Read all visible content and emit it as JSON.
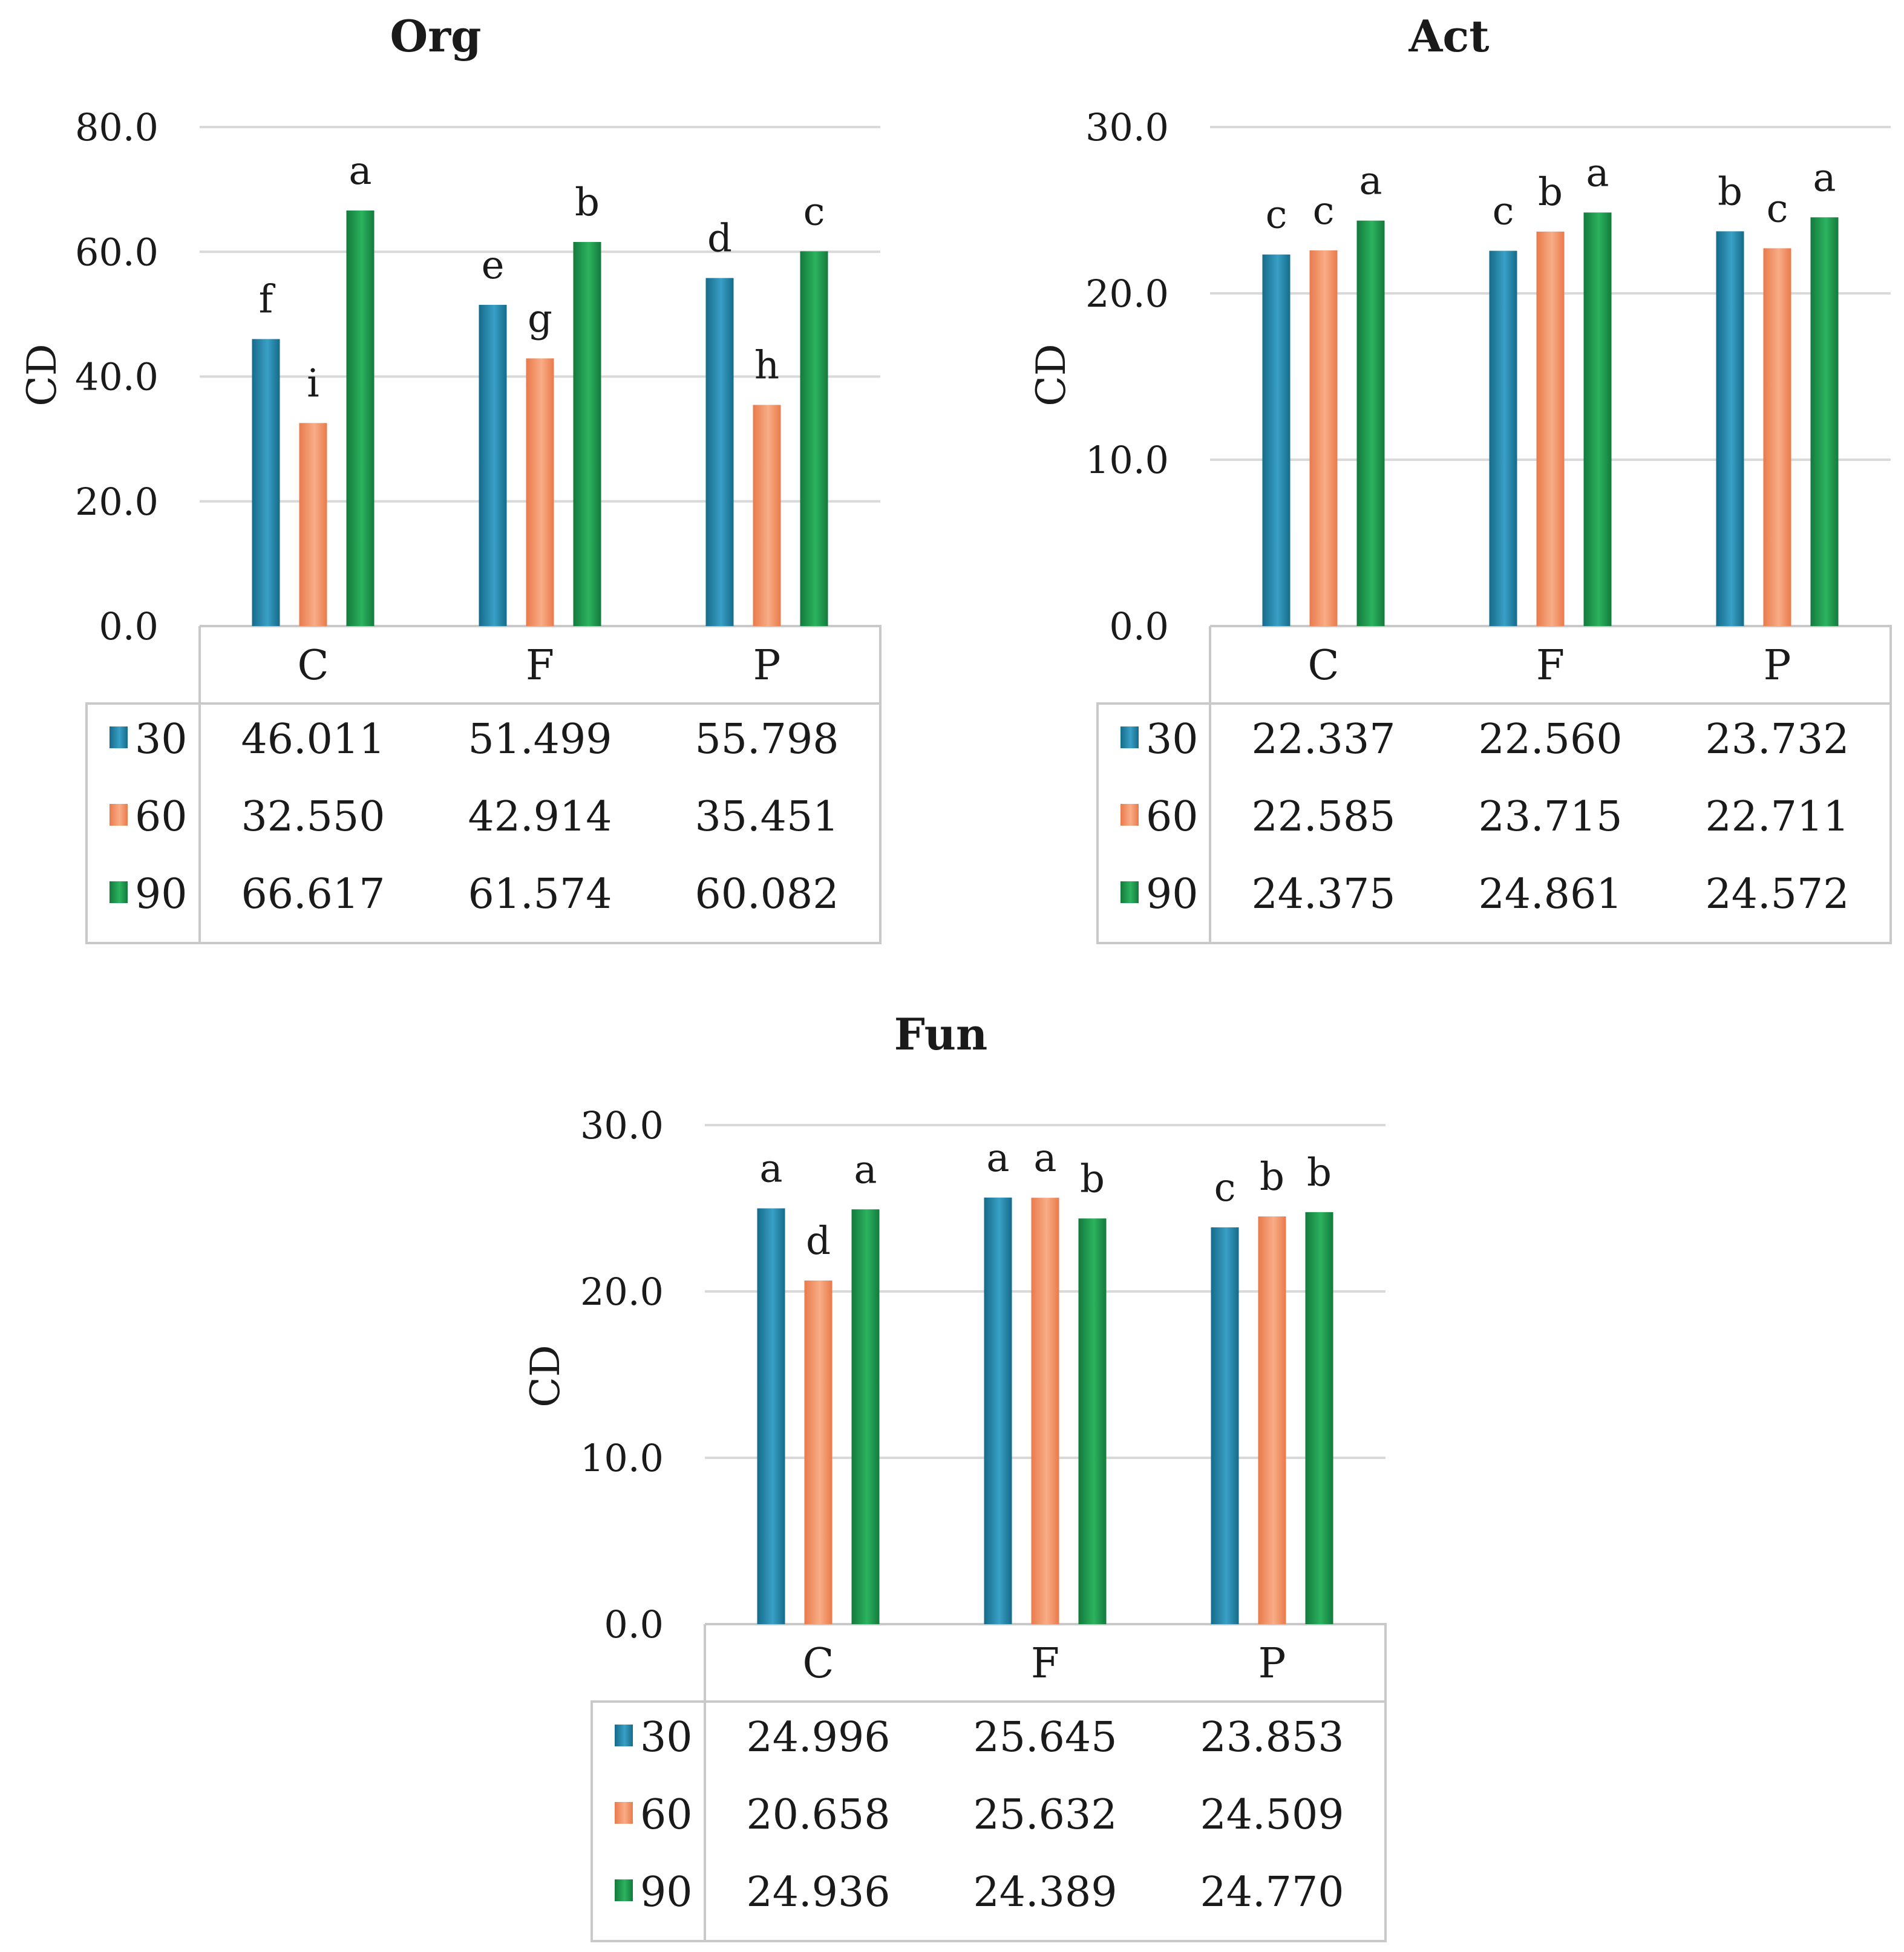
{
  "colors": {
    "s30_dark": "#156b8a",
    "s30_light": "#3aa0c6",
    "s60_dark": "#e97a4c",
    "s60_light": "#f8ad86",
    "s90_dark": "#137a3c",
    "s90_light": "#2cb35f"
  },
  "chart_data": [
    {
      "type": "bar",
      "title": "Org",
      "ylabel": "CD",
      "xlabel": "",
      "ylim": [
        0,
        80
      ],
      "yticks": [
        "0.0",
        "20.0",
        "40.0",
        "60.0",
        "80.0"
      ],
      "categories": [
        "C",
        "F",
        "P"
      ],
      "series": [
        {
          "name": "30",
          "values": [
            46.011,
            51.499,
            55.798
          ],
          "labels": [
            "46.011",
            "51.499",
            "55.798"
          ],
          "letters": [
            "f",
            "e",
            "d"
          ]
        },
        {
          "name": "60",
          "values": [
            32.55,
            42.914,
            35.451
          ],
          "labels": [
            "32.550",
            "42.914",
            "35.451"
          ],
          "letters": [
            "i",
            "g",
            "h"
          ]
        },
        {
          "name": "90",
          "values": [
            66.617,
            61.574,
            60.082
          ],
          "labels": [
            "66.617",
            "61.574",
            "60.082"
          ],
          "letters": [
            "a",
            "b",
            "c"
          ]
        }
      ]
    },
    {
      "type": "bar",
      "title": "Act",
      "ylabel": "CD",
      "xlabel": "",
      "ylim": [
        0,
        30
      ],
      "yticks": [
        "0.0",
        "10.0",
        "20.0",
        "30.0"
      ],
      "categories": [
        "C",
        "F",
        "P"
      ],
      "series": [
        {
          "name": "30",
          "values": [
            22.337,
            22.56,
            23.732
          ],
          "labels": [
            "22.337",
            "22.560",
            "23.732"
          ],
          "letters": [
            "c",
            "c",
            "b"
          ]
        },
        {
          "name": "60",
          "values": [
            22.585,
            23.715,
            22.711
          ],
          "labels": [
            "22.585",
            "23.715",
            "22.711"
          ],
          "letters": [
            "c",
            "b",
            "c"
          ]
        },
        {
          "name": "90",
          "values": [
            24.375,
            24.861,
            24.572
          ],
          "labels": [
            "24.375",
            "24.861",
            "24.572"
          ],
          "letters": [
            "a",
            "a",
            "a"
          ]
        }
      ]
    },
    {
      "type": "bar",
      "title": "Fun",
      "ylabel": "CD",
      "xlabel": "",
      "ylim": [
        0,
        30
      ],
      "yticks": [
        "0.0",
        "10.0",
        "20.0",
        "30.0"
      ],
      "categories": [
        "C",
        "F",
        "P"
      ],
      "series": [
        {
          "name": "30",
          "values": [
            24.996,
            25.645,
            23.853
          ],
          "labels": [
            "24.996",
            "25.645",
            "23.853"
          ],
          "letters": [
            "a",
            "a",
            "c"
          ]
        },
        {
          "name": "60",
          "values": [
            20.658,
            25.632,
            24.509
          ],
          "labels": [
            "20.658",
            "25.632",
            "24.509"
          ],
          "letters": [
            "d",
            "a",
            "b"
          ]
        },
        {
          "name": "90",
          "values": [
            24.936,
            24.389,
            24.77
          ],
          "labels": [
            "24.936",
            "24.389",
            "24.770"
          ],
          "letters": [
            "a",
            "b",
            "b"
          ]
        }
      ]
    }
  ]
}
